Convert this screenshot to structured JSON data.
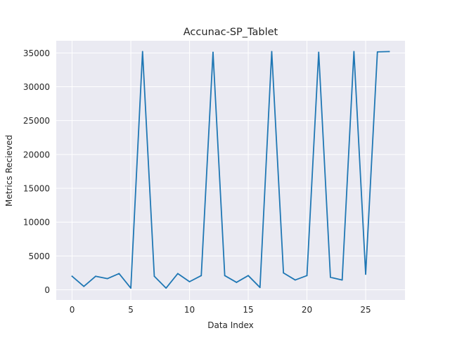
{
  "chart_data": {
    "type": "line",
    "title": "Accunac-SP_Tablet",
    "xlabel": "Data Index",
    "ylabel": "Metrics Recieved",
    "xlim": [
      -1.35,
      28.35
    ],
    "ylim": [
      -1500,
      36800
    ],
    "xticks": [
      0,
      5,
      10,
      15,
      20,
      25
    ],
    "yticks": [
      0,
      5000,
      10000,
      15000,
      20000,
      25000,
      30000,
      35000
    ],
    "grid": true,
    "legend": "none",
    "series": [
      {
        "color": "#1f77b4",
        "x": [
          0,
          1,
          2,
          3,
          4,
          5,
          6,
          7,
          8,
          9,
          10,
          11,
          12,
          13,
          14,
          15,
          16,
          17,
          18,
          19,
          20,
          21,
          22,
          23,
          24,
          25,
          26,
          27
        ],
        "y": [
          2000,
          500,
          2000,
          1650,
          2400,
          250,
          35200,
          2000,
          250,
          2400,
          1200,
          2100,
          35100,
          2100,
          1100,
          2100,
          350,
          35200,
          2500,
          1450,
          2100,
          35100,
          1850,
          1450,
          35200,
          2300,
          35150,
          35200
        ]
      }
    ]
  },
  "colors": {
    "plot_background": "#eaeaf2",
    "grid": "#ffffff",
    "text": "#262626"
  }
}
